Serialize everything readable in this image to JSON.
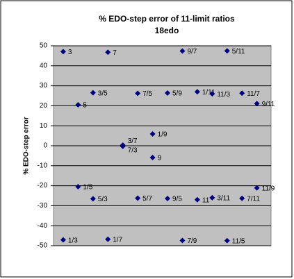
{
  "chart_data": {
    "type": "scatter",
    "title": "% EDO-step error of 11-limit ratios",
    "subtitle": "18edo",
    "y_label": "% EDO-step error",
    "labels": [
      "3",
      "1/3",
      "5",
      "1/5",
      "3/5",
      "5/3",
      "7",
      "1/7",
      "3/7",
      "7/3",
      "7/5",
      "5/7",
      "9",
      "1/9",
      "5/9",
      "9/5",
      "9/7",
      "7/9",
      "11",
      "1/11",
      "11/3",
      "3/11",
      "5/11",
      "11/5",
      "11/7",
      "7/11",
      "9/11",
      "11/9"
    ],
    "x": [
      1,
      1,
      2,
      2,
      3,
      3,
      4,
      4,
      5,
      5,
      6,
      6,
      7,
      7,
      8,
      8,
      9,
      9,
      10,
      10,
      11,
      11,
      12,
      12,
      13,
      13,
      14,
      14
    ],
    "values": [
      47.1,
      -47.1,
      20.5,
      -20.5,
      26.5,
      -26.5,
      46.8,
      -46.8,
      0.3,
      -0.3,
      26.2,
      -26.2,
      -5.9,
      5.9,
      26.4,
      -26.4,
      47.4,
      -47.4,
      -27.0,
      27.0,
      26.0,
      -26.0,
      47.5,
      -47.5,
      26.3,
      -26.3,
      21.1,
      -21.1
    ],
    "color": "#000080",
    "xlim": [
      0.35,
      14.95
    ],
    "ylim": [
      -50,
      50
    ],
    "yticks": [
      -50,
      -40,
      -30,
      -20,
      -10,
      0,
      10,
      20,
      30,
      40,
      50
    ],
    "grid": true
  }
}
